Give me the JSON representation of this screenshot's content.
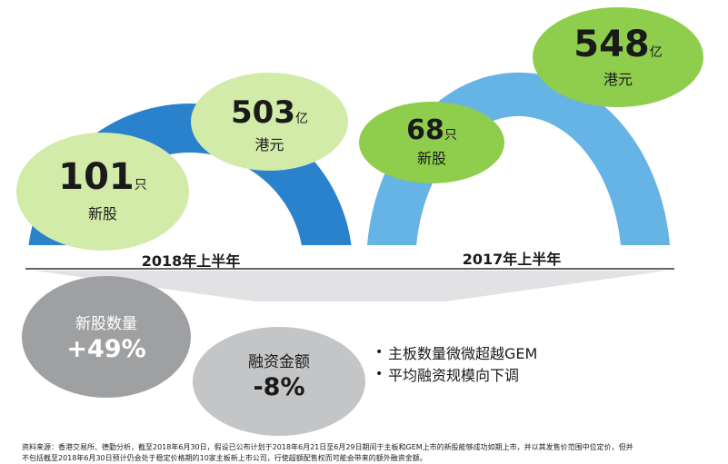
{
  "colors": {
    "arch_2018": "#2b82cc",
    "arch_2017": "#66b3e6",
    "bubble_dark_green": "#8fce4c",
    "bubble_light_green": "#d2eba9",
    "stat_grey_dark": "#9fa0a2",
    "stat_grey_light": "#c4c5c7"
  },
  "h1_2018": {
    "arch_label": "2018年上半年",
    "new_shares": {
      "value": "101",
      "unit": "只",
      "label": "新股"
    },
    "funds": {
      "value": "503",
      "unit": "亿",
      "label": "港元"
    }
  },
  "h1_2017": {
    "arch_label": "2017年上半年",
    "new_shares": {
      "value": "68",
      "unit": "只",
      "label": "新股"
    },
    "funds": {
      "value": "548",
      "unit": "亿",
      "label": "港元"
    }
  },
  "changes": {
    "count": {
      "label": "新股数量",
      "value": "+49%"
    },
    "funds": {
      "label": "融资金额",
      "value": "-8%"
    }
  },
  "bullets": [
    "主板数量微微超越GEM",
    "平均融资规模向下调"
  ],
  "bullet_symbol": "•",
  "footnote": {
    "line1": "资料来源：香港交易所、德勤分析，截至2018年6月30日，假设已公布计划于2018年6月21日至6月29日期间于主板和GEM上市的新股能够成功如期上市，并以其发售价范围中位定价，但并",
    "line2": "不包括截至2018年6月30日预计仍会处于稳定价格期的10家主板新上市公司，行使超额配售权而可能会带来的额外融资金额。"
  }
}
